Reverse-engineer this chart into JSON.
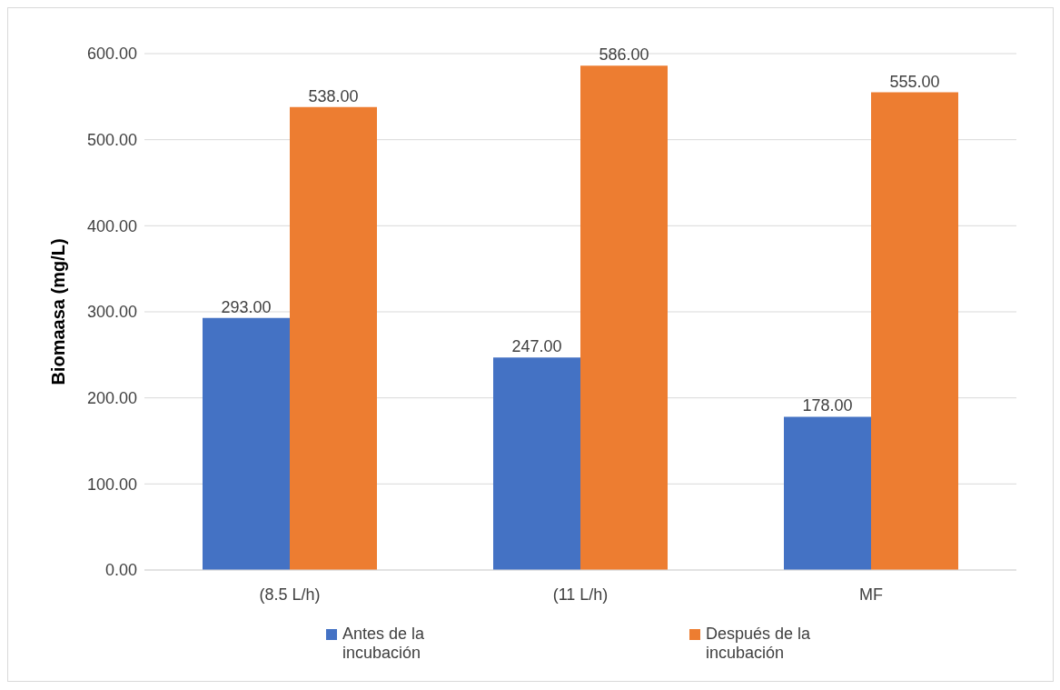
{
  "chart_data": {
    "type": "bar",
    "ylabel": "Biomaasa (mg/L)",
    "categories": [
      "(8.5 L/h)",
      "(11 L/h)",
      "MF"
    ],
    "series": [
      {
        "name": "Antes de la incubación",
        "color": "#4472c4",
        "values": [
          293,
          247,
          178
        ],
        "value_labels": [
          "293.00",
          "247.00",
          "178.00"
        ]
      },
      {
        "name": "Después de la incubación",
        "color": "#ed7d31",
        "values": [
          538,
          586,
          555
        ],
        "value_labels": [
          "538.00",
          "586.00",
          "555.00"
        ]
      }
    ],
    "ylim": [
      0,
      600
    ],
    "yticks": [
      {
        "value": 0,
        "label": "0.00"
      },
      {
        "value": 100,
        "label": "100.00"
      },
      {
        "value": 200,
        "label": "200.00"
      },
      {
        "value": 300,
        "label": "300.00"
      },
      {
        "value": 400,
        "label": "400.00"
      },
      {
        "value": 500,
        "label": "500.00"
      },
      {
        "value": 600,
        "label": "600.00"
      }
    ],
    "grid": "y",
    "legend": "bottom"
  }
}
